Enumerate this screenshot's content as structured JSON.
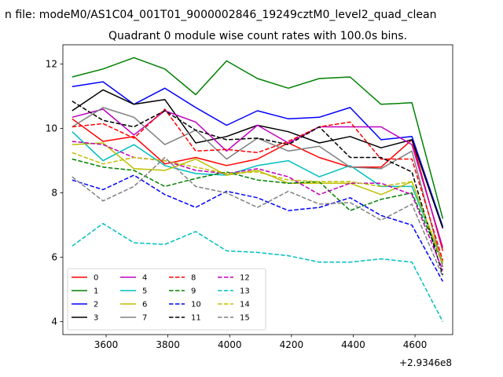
{
  "figure": {
    "suptitle": "n file: modeM0/AS1C04_001T01_9000002846_19249cztM0_level2_quad_clean",
    "title": "Quadrant 0 module wise count rates with 100.0s bins."
  },
  "chart_data": {
    "type": "line",
    "title": "Quadrant 0 module wise count rates with 100.0s bins.",
    "xlabel": "",
    "ylabel": "",
    "x_offset_label": "+2.9346e8",
    "x_offset": 293460000,
    "x": [
      3490,
      3590,
      3690,
      3790,
      3890,
      3990,
      4090,
      4190,
      4290,
      4390,
      4490,
      4590,
      4690
    ],
    "xlim": [
      3460,
      4722
    ],
    "ylim": [
      3.6,
      12.6
    ],
    "x_ticks": [
      3600,
      3800,
      4000,
      4200,
      4400,
      4600
    ],
    "y_ticks": [
      4,
      6,
      8,
      10,
      12
    ],
    "x_tick_labels": [
      "3600",
      "3800",
      "4000",
      "4200",
      "4400",
      "4600"
    ],
    "y_tick_labels": [
      "4",
      "6",
      "8",
      "10",
      "12"
    ],
    "grid": false,
    "legend_position": "lower left",
    "legend_columns": 4,
    "series": [
      {
        "name": "0",
        "color": "#ff0000",
        "dash": "solid",
        "values": [
          10.3,
          9.6,
          9.75,
          8.9,
          9.1,
          8.85,
          9.05,
          9.55,
          9.1,
          8.8,
          8.8,
          9.65,
          6.2
        ]
      },
      {
        "name": "1",
        "color": "#008000",
        "dash": "solid",
        "values": [
          11.6,
          11.85,
          12.2,
          11.85,
          11.05,
          12.1,
          11.55,
          11.25,
          11.55,
          11.6,
          10.75,
          10.8,
          7.2
        ]
      },
      {
        "name": "2",
        "color": "#0000ff",
        "dash": "solid",
        "values": [
          11.3,
          11.45,
          10.75,
          11.25,
          10.65,
          10.1,
          10.55,
          10.3,
          10.35,
          10.65,
          9.65,
          9.75,
          6.95
        ]
      },
      {
        "name": "3",
        "color": "#000000",
        "dash": "solid",
        "values": [
          10.55,
          11.2,
          10.75,
          10.9,
          9.55,
          9.75,
          10.1,
          9.9,
          9.55,
          9.75,
          9.4,
          9.65,
          6.9
        ]
      },
      {
        "name": "4",
        "color": "#bf00bf",
        "dash": "solid",
        "values": [
          10.35,
          10.6,
          9.8,
          10.55,
          10.2,
          9.3,
          10.1,
          9.55,
          10.05,
          10.05,
          10.05,
          9.5,
          6.3
        ]
      },
      {
        "name": "5",
        "color": "#00bfbf",
        "dash": "solid",
        "values": [
          9.9,
          9.0,
          9.5,
          8.85,
          8.6,
          8.55,
          8.85,
          9.0,
          8.5,
          8.85,
          8.2,
          8.2,
          5.85
        ]
      },
      {
        "name": "6",
        "color": "#bfbf00",
        "dash": "solid",
        "values": [
          9.5,
          9.55,
          8.75,
          8.7,
          9.05,
          8.55,
          8.7,
          8.3,
          8.3,
          8.3,
          7.95,
          8.35,
          5.85
        ]
      },
      {
        "name": "7",
        "color": "#808080",
        "dash": "solid",
        "values": [
          10.05,
          10.65,
          10.35,
          9.5,
          9.95,
          9.05,
          9.7,
          9.3,
          9.45,
          8.8,
          8.75,
          9.3,
          5.7
        ]
      },
      {
        "name": "8",
        "color": "#ff0000",
        "dash": "dashed",
        "values": [
          10.05,
          10.15,
          9.7,
          10.6,
          9.3,
          9.35,
          9.25,
          9.6,
          10.05,
          10.2,
          9.05,
          9.05,
          5.9
        ]
      },
      {
        "name": "9",
        "color": "#008000",
        "dash": "dashed",
        "values": [
          9.05,
          8.8,
          8.7,
          8.2,
          8.45,
          8.65,
          8.4,
          8.3,
          8.35,
          7.45,
          7.8,
          8.0,
          5.8
        ]
      },
      {
        "name": "10",
        "color": "#0000ff",
        "dash": "dashed",
        "values": [
          8.4,
          8.1,
          8.55,
          7.95,
          7.55,
          8.05,
          7.85,
          7.45,
          7.55,
          7.85,
          7.3,
          7.0,
          5.25
        ]
      },
      {
        "name": "11",
        "color": "#000000",
        "dash": "dashed",
        "values": [
          10.85,
          10.25,
          10.05,
          10.55,
          9.95,
          9.65,
          9.7,
          9.5,
          10.05,
          9.1,
          9.1,
          8.65,
          5.45
        ]
      },
      {
        "name": "12",
        "color": "#bf00bf",
        "dash": "dashed",
        "values": [
          9.6,
          9.5,
          9.1,
          9.0,
          8.7,
          8.6,
          8.75,
          8.5,
          7.95,
          8.3,
          8.3,
          7.95,
          5.6
        ]
      },
      {
        "name": "13",
        "color": "#00bfbf",
        "dash": "dashed",
        "values": [
          6.35,
          7.05,
          6.45,
          6.4,
          6.8,
          6.2,
          6.15,
          6.05,
          5.85,
          5.85,
          5.95,
          5.85,
          4.0
        ]
      },
      {
        "name": "14",
        "color": "#bfbf00",
        "dash": "dashed",
        "values": [
          9.25,
          8.9,
          9.1,
          9.0,
          8.8,
          8.6,
          8.65,
          8.4,
          8.35,
          8.35,
          8.2,
          8.35,
          5.8
        ]
      },
      {
        "name": "15",
        "color": "#808080",
        "dash": "dashed",
        "values": [
          8.5,
          7.75,
          8.2,
          9.1,
          8.2,
          8.0,
          7.55,
          8.05,
          7.65,
          7.7,
          7.15,
          7.65,
          5.4
        ]
      }
    ]
  }
}
